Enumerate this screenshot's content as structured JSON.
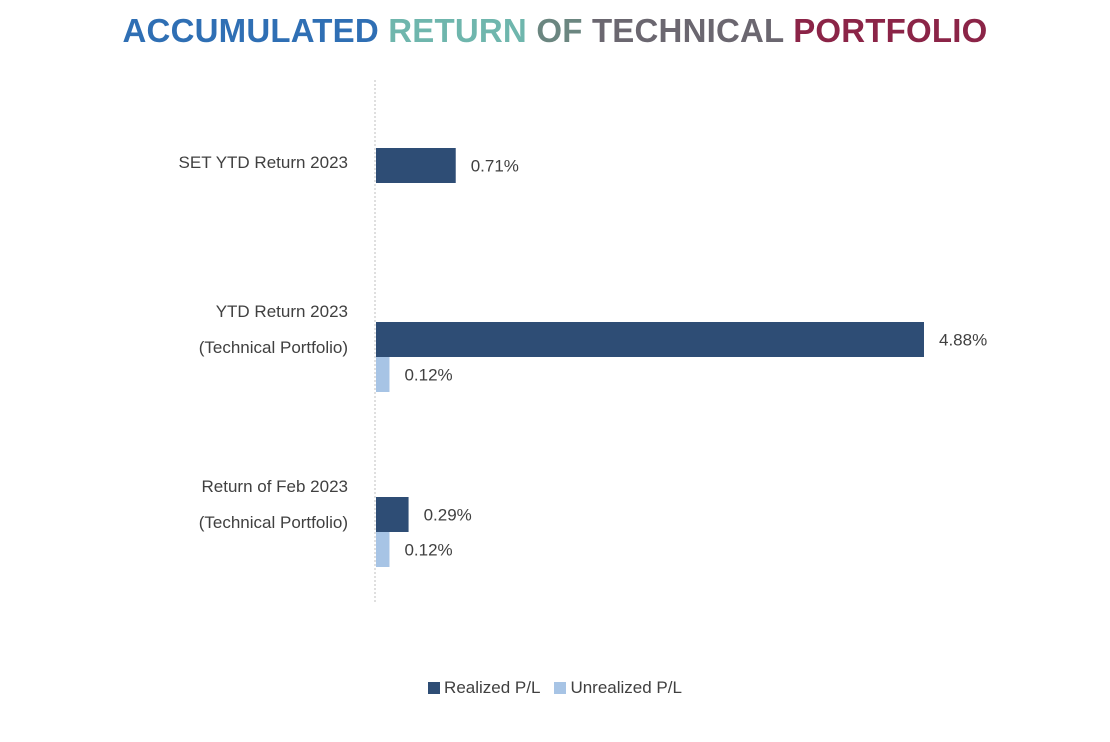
{
  "title": {
    "segments": [
      {
        "text": "ACCUMULATED ",
        "color": "#2f6fb4"
      },
      {
        "text": "RETURN ",
        "color": "#6fb6ad"
      },
      {
        "text": "OF ",
        "color": "#6b8680"
      },
      {
        "text": "TECHNICAL ",
        "color": "#6b6770"
      },
      {
        "text": "PORTFOLIO",
        "color": "#8b2447"
      }
    ]
  },
  "chart_data": {
    "type": "bar",
    "orientation": "horizontal",
    "categories": [
      {
        "lines": [
          "SET YTD Return 2023"
        ]
      },
      {
        "lines": [
          "YTD Return 2023",
          "(Technical Portfolio)"
        ]
      },
      {
        "lines": [
          "Return of Feb 2023",
          "(Technical Portfolio)"
        ]
      }
    ],
    "series": [
      {
        "name": "Realized P/L",
        "color": "#2e4d75",
        "values": [
          0.71,
          4.88,
          0.29
        ],
        "labels": [
          "0.71%",
          "4.88%",
          "0.29%"
        ]
      },
      {
        "name": "Unrealized P/L",
        "color": "#a7c4e5",
        "values": [
          null,
          0.12,
          0.12
        ],
        "labels": [
          null,
          "0.12%",
          "0.12%"
        ]
      }
    ],
    "axis_color": "#bfbfbf",
    "xlim": [
      0,
      4.88
    ],
    "grid": false,
    "legend_position": "bottom"
  }
}
